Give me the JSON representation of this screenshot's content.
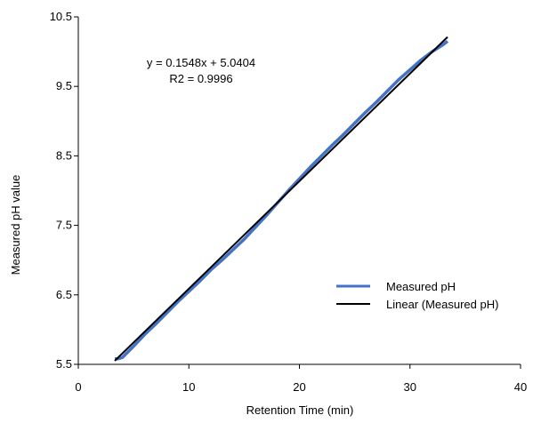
{
  "chart_data": {
    "type": "line",
    "title": "",
    "xlabel": "Retention Time (min)",
    "ylabel": "Measured pH value",
    "xlim": [
      0,
      40
    ],
    "ylim": [
      5.5,
      10.5
    ],
    "x_ticks": [
      0,
      10,
      20,
      30,
      40
    ],
    "y_ticks": [
      5.5,
      6.5,
      7.5,
      8.5,
      9.5,
      10.5
    ],
    "x_tick_labels": [
      "0",
      "10",
      "20",
      "30",
      "40"
    ],
    "y_tick_labels": [
      "5.5",
      "6.5",
      "7.5",
      "8.5",
      "9.5",
      "10.5"
    ],
    "grid": false,
    "legend_position": "lower-right",
    "annotations": [
      "y = 0.1548x + 5.0404",
      "R2 = 0.9996"
    ],
    "series": [
      {
        "name": "Measured pH",
        "color": "#4472C4",
        "x": [
          3.3,
          3.6,
          4.0,
          4.5,
          5.0,
          6.0,
          7.0,
          8.0,
          9.0,
          10.0,
          11.0,
          12.0,
          13.0,
          14.0,
          15.0,
          16.0,
          17.0,
          18.0,
          19.0,
          20.0,
          21.0,
          22.0,
          23.0,
          24.0,
          25.0,
          26.0,
          27.0,
          28.0,
          29.0,
          30.0,
          31.0,
          32.0,
          33.0,
          33.4
        ],
        "y": [
          5.58,
          5.58,
          5.6,
          5.68,
          5.76,
          5.93,
          6.08,
          6.24,
          6.4,
          6.55,
          6.7,
          6.86,
          7.0,
          7.15,
          7.3,
          7.47,
          7.64,
          7.82,
          8.0,
          8.17,
          8.34,
          8.5,
          8.66,
          8.81,
          8.97,
          9.13,
          9.28,
          9.44,
          9.6,
          9.74,
          9.88,
          10.0,
          10.1,
          10.15
        ]
      },
      {
        "name": "Linear (Measured pH)",
        "color": "#000000",
        "type": "trendline",
        "slope": 0.1548,
        "intercept": 5.0404,
        "x": [
          3.3,
          33.4
        ],
        "y": [
          5.551,
          10.211
        ]
      }
    ]
  }
}
